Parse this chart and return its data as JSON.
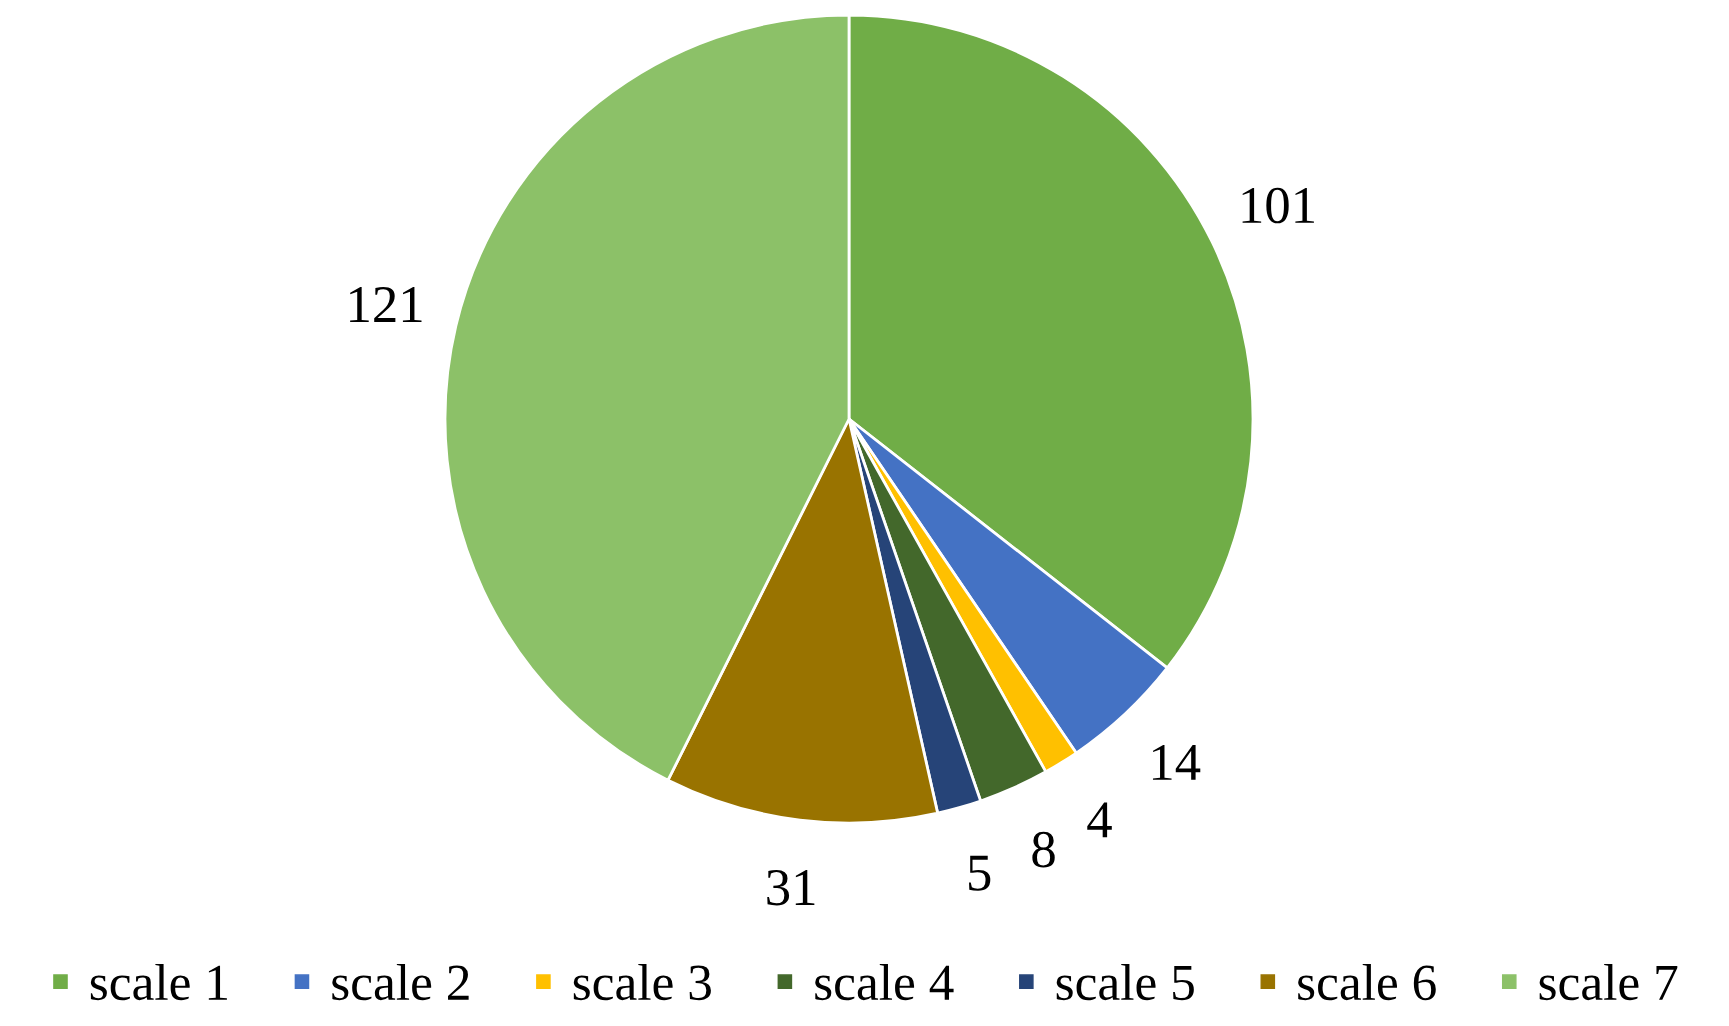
{
  "chart_data": {
    "type": "pie",
    "categories": [
      "scale 1",
      "scale 2",
      "scale 3",
      "scale 4",
      "scale 5",
      "scale 6",
      "scale 7"
    ],
    "values": [
      101,
      14,
      4,
      8,
      5,
      31,
      121
    ],
    "colors": [
      "#70ad47",
      "#4472c4",
      "#ffc000",
      "#43682b",
      "#264478",
      "#997300",
      "#8cc168"
    ],
    "data_labels": true,
    "legend": "bottom"
  }
}
